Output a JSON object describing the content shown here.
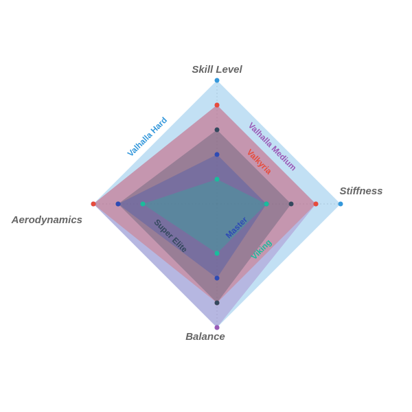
{
  "chart_data": {
    "type": "radar",
    "axes": [
      "Skill Level",
      "Stiffness",
      "Balance",
      "Aerodynamics"
    ],
    "rlim": [
      0,
      5
    ],
    "series": [
      {
        "name": "Valhalla Hard",
        "color": "#3498db",
        "values": [
          5,
          5,
          5,
          5
        ]
      },
      {
        "name": "Valhalla Medium",
        "color": "#9b59b6",
        "values": [
          4,
          4,
          5,
          5
        ]
      },
      {
        "name": "Valkyria",
        "color": "#e74c3c",
        "values": [
          4,
          4,
          4,
          5
        ]
      },
      {
        "name": "Super Elite",
        "color": "#34495e",
        "values": [
          3,
          3,
          4,
          4
        ]
      },
      {
        "name": "Master",
        "color": "#2e4bb5",
        "values": [
          2,
          2,
          3,
          4
        ]
      },
      {
        "name": "Viking",
        "color": "#1abc9c",
        "values": [
          1,
          2,
          2,
          3
        ]
      }
    ]
  }
}
